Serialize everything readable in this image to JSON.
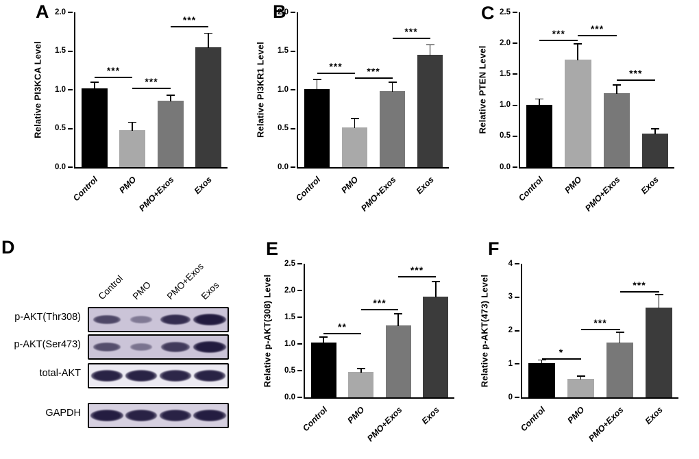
{
  "chart_data": [
    {
      "panel": "A",
      "type": "bar",
      "title": "",
      "ylabel": "Relative PI3KCA Level",
      "xlabel": "",
      "categories": [
        "Control",
        "PMO",
        "PMO+Exos",
        "Exos"
      ],
      "values": [
        1.02,
        0.48,
        0.86,
        1.55
      ],
      "errors": [
        0.08,
        0.1,
        0.07,
        0.18
      ],
      "ylim": [
        0,
        2.0
      ],
      "yticks": [
        0,
        0.5,
        1.0,
        1.5,
        2.0
      ],
      "ytick_labels": [
        "0.0",
        "0.5",
        "1.0",
        "1.5",
        "2.0"
      ],
      "bar_colors": [
        "#000000",
        "#a9a9a9",
        "#787878",
        "#3b3b3b"
      ],
      "grid": false,
      "legend": "none",
      "significance": [
        {
          "between": [
            0,
            1
          ],
          "label": "***",
          "y": 1.17
        },
        {
          "between": [
            1,
            2
          ],
          "label": "***",
          "y": 1.03
        },
        {
          "between": [
            2,
            3
          ],
          "label": "***",
          "y": 1.82
        }
      ]
    },
    {
      "panel": "B",
      "type": "bar",
      "title": "",
      "ylabel": "Relative PI3KR1 Level",
      "xlabel": "",
      "categories": [
        "Control",
        "PMO",
        "PMO+Exos",
        "Exos"
      ],
      "values": [
        1.01,
        0.51,
        0.98,
        1.45
      ],
      "errors": [
        0.12,
        0.12,
        0.12,
        0.13
      ],
      "ylim": [
        0,
        2.0
      ],
      "yticks": [
        0,
        0.5,
        1.0,
        1.5,
        2.0
      ],
      "ytick_labels": [
        "0.0",
        "0.5",
        "1.0",
        "1.5",
        "2.0"
      ],
      "bar_colors": [
        "#000000",
        "#a9a9a9",
        "#787878",
        "#3b3b3b"
      ],
      "grid": false,
      "legend": "none",
      "significance": [
        {
          "between": [
            0,
            1
          ],
          "label": "***",
          "y": 1.22
        },
        {
          "between": [
            1,
            2
          ],
          "label": "***",
          "y": 1.16
        },
        {
          "between": [
            2,
            3
          ],
          "label": "***",
          "y": 1.67
        }
      ]
    },
    {
      "panel": "C",
      "type": "bar",
      "title": "",
      "ylabel": "Relative PTEN Level",
      "xlabel": "",
      "categories": [
        "Control",
        "PMO",
        "PMO+Exos",
        "Exos"
      ],
      "values": [
        1.01,
        1.74,
        1.19,
        0.54
      ],
      "errors": [
        0.09,
        0.25,
        0.14,
        0.08
      ],
      "ylim": [
        0,
        2.5
      ],
      "yticks": [
        0,
        0.5,
        1.0,
        1.5,
        2.0,
        2.5
      ],
      "ytick_labels": [
        "0.0",
        "0.5",
        "1.0",
        "1.5",
        "2.0",
        "2.5"
      ],
      "bar_colors": [
        "#000000",
        "#a9a9a9",
        "#787878",
        "#3b3b3b"
      ],
      "grid": false,
      "legend": "none",
      "significance": [
        {
          "between": [
            0,
            1
          ],
          "label": "***",
          "y": 2.06
        },
        {
          "between": [
            1,
            2
          ],
          "label": "***",
          "y": 2.14
        },
        {
          "between": [
            2,
            3
          ],
          "label": "***",
          "y": 1.42
        }
      ]
    },
    {
      "panel": "E",
      "type": "bar",
      "title": "",
      "ylabel": "Relative p-AKT(308) Level",
      "xlabel": "",
      "categories": [
        "Control",
        "PMO",
        "PMO+Exos",
        "Exos"
      ],
      "values": [
        1.02,
        0.48,
        1.35,
        1.88
      ],
      "errors": [
        0.11,
        0.06,
        0.21,
        0.29
      ],
      "ylim": [
        0,
        2.5
      ],
      "yticks": [
        0,
        0.5,
        1.0,
        1.5,
        2.0,
        2.5
      ],
      "ytick_labels": [
        "0.0",
        "0.5",
        "1.0",
        "1.5",
        "2.0",
        "2.5"
      ],
      "bar_colors": [
        "#000000",
        "#a9a9a9",
        "#787878",
        "#3b3b3b"
      ],
      "grid": false,
      "legend": "none",
      "significance": [
        {
          "between": [
            0,
            1
          ],
          "label": "**",
          "y": 1.2
        },
        {
          "between": [
            1,
            2
          ],
          "label": "***",
          "y": 1.65
        },
        {
          "between": [
            2,
            3
          ],
          "label": "***",
          "y": 2.27
        }
      ]
    },
    {
      "panel": "F",
      "type": "bar",
      "title": "",
      "ylabel": "Relative p-AKT(473) Level",
      "xlabel": "",
      "categories": [
        "Control",
        "PMO",
        "PMO+Exos",
        "Exos"
      ],
      "values": [
        1.02,
        0.55,
        1.65,
        2.68
      ],
      "errors": [
        0.1,
        0.08,
        0.3,
        0.39
      ],
      "ylim": [
        0,
        4
      ],
      "yticks": [
        0,
        1,
        2,
        3,
        4
      ],
      "ytick_labels": [
        "0",
        "1",
        "2",
        "3",
        "4"
      ],
      "bar_colors": [
        "#000000",
        "#a9a9a9",
        "#787878",
        "#3b3b3b"
      ],
      "grid": false,
      "legend": "none",
      "significance": [
        {
          "between": [
            0,
            1
          ],
          "label": "*",
          "y": 1.17
        },
        {
          "between": [
            1,
            2
          ],
          "label": "***",
          "y": 2.05
        },
        {
          "between": [
            2,
            3
          ],
          "label": "***",
          "y": 3.18
        }
      ]
    }
  ],
  "blot": {
    "panel": "D",
    "lane_labels": [
      "Control",
      "PMO",
      "PMO+Exos",
      "Exos"
    ],
    "rows": [
      {
        "label": "p-AKT(Thr308)",
        "band_intensities": [
          0.65,
          0.25,
          0.85,
          1.0
        ]
      },
      {
        "label": "p-AKT(Ser473)",
        "band_intensities": [
          0.6,
          0.3,
          0.75,
          1.0
        ]
      },
      {
        "label": "total-AKT",
        "band_intensities": [
          0.95,
          0.95,
          0.92,
          0.95
        ]
      },
      {
        "label": "GAPDH",
        "band_intensities": [
          0.98,
          0.95,
          0.95,
          0.98
        ]
      }
    ],
    "band_color": "#221b3f",
    "membrane_colors": [
      "#cbc4d8",
      "#cbc4d8",
      "#eceaf2",
      "#d6d0e0"
    ]
  }
}
